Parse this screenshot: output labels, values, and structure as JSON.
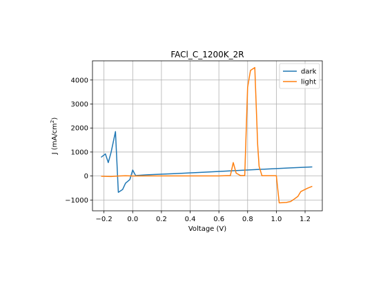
{
  "chart_data": {
    "type": "line",
    "title": "FACl_C_1200K_2R",
    "xlabel": "Voltage (V)",
    "ylabel_main": "J (mA/cm",
    "ylabel_sup": "2",
    "ylabel_end": ")",
    "xlim": [
      -0.28,
      1.32
    ],
    "ylim": [
      -1450,
      4800
    ],
    "x_ticks": [
      -0.2,
      0.0,
      0.2,
      0.4,
      0.6,
      0.8,
      1.0,
      1.2
    ],
    "x_tick_labels": [
      "−0.2",
      "0.0",
      "0.2",
      "0.4",
      "0.6",
      "0.8",
      "1.0",
      "1.2"
    ],
    "y_ticks": [
      -1000,
      0,
      1000,
      2000,
      3000,
      4000
    ],
    "y_tick_labels": [
      "−1000",
      "0",
      "1000",
      "2000",
      "3000",
      "4000"
    ],
    "grid": true,
    "legend_position": "top-right",
    "series": [
      {
        "name": "dark",
        "color": "#1f77b4",
        "x": [
          -0.22,
          -0.19,
          -0.17,
          -0.15,
          -0.12,
          -0.1,
          -0.07,
          -0.05,
          -0.02,
          0.0,
          0.02,
          0.1,
          0.3,
          0.5,
          0.7,
          0.9,
          1.1,
          1.25
        ],
        "y": [
          780,
          920,
          560,
          1000,
          1850,
          -680,
          -560,
          -300,
          -150,
          250,
          20,
          50,
          100,
          160,
          220,
          280,
          340,
          380
        ]
      },
      {
        "name": "light",
        "color": "#ff7f0e",
        "x": [
          -0.22,
          -0.15,
          -0.1,
          -0.05,
          0.0,
          0.1,
          0.3,
          0.5,
          0.6,
          0.68,
          0.7,
          0.72,
          0.75,
          0.77,
          0.78,
          0.8,
          0.82,
          0.85,
          0.87,
          0.88,
          0.9,
          0.95,
          0.98,
          1.0,
          1.02,
          1.07,
          1.1,
          1.12,
          1.15,
          1.17,
          1.2,
          1.22,
          1.25
        ],
        "y": [
          -10,
          -20,
          0,
          10,
          0,
          5,
          5,
          5,
          5,
          20,
          560,
          120,
          20,
          20,
          20,
          3700,
          4400,
          4520,
          1300,
          400,
          10,
          10,
          10,
          10,
          -1120,
          -1100,
          -1060,
          -980,
          -850,
          -650,
          -560,
          -500,
          -430
        ]
      }
    ]
  }
}
